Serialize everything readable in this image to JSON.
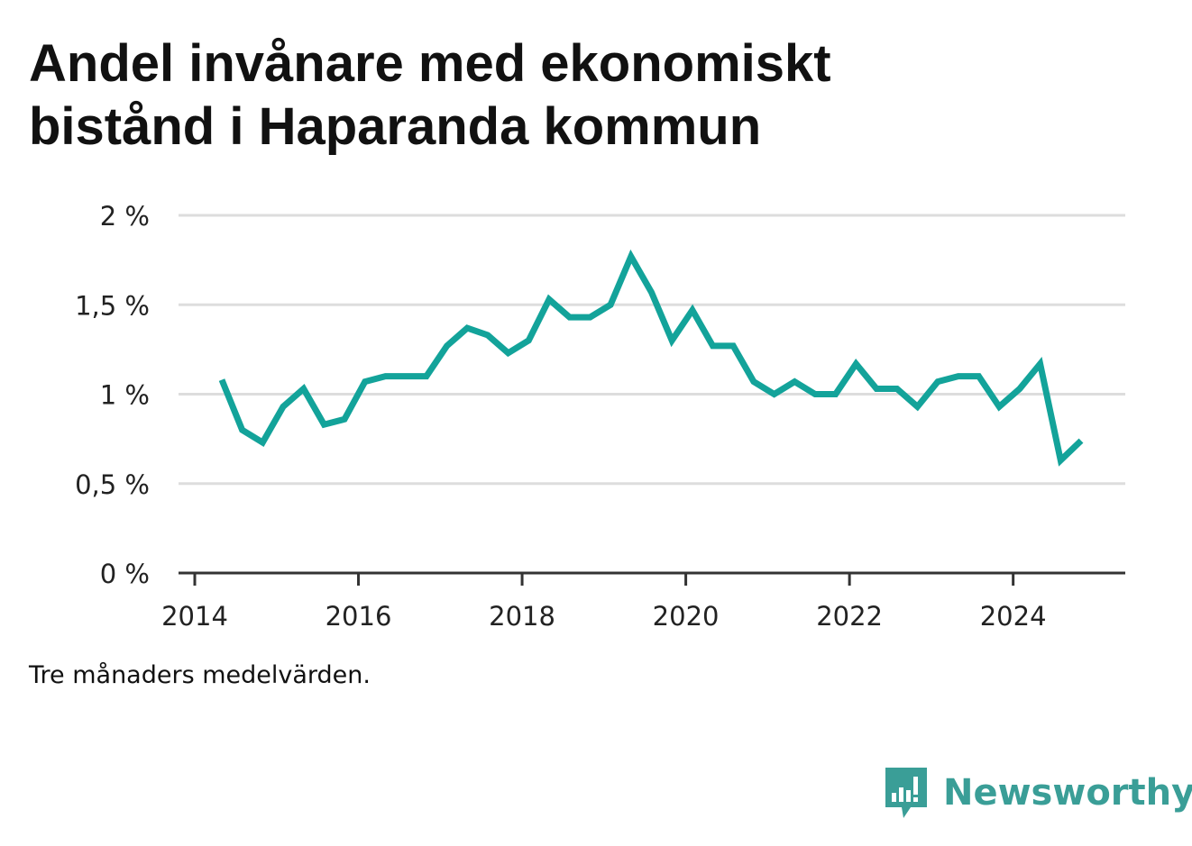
{
  "title": "Andel invånare med ekonomiskt bistånd i Haparanda kommun",
  "note": "Tre månaders medelvärden.",
  "brand": {
    "name": "Newsworthy",
    "logo_icon": "newsworthy-logo-icon"
  },
  "colors": {
    "line": "#13a39a",
    "grid": "#dddddd",
    "axis": "#333333",
    "brand": "#3a9e97"
  },
  "chart_data": {
    "type": "line",
    "title": "Andel invånare med ekonomiskt bistånd i Haparanda kommun",
    "xlabel": "",
    "ylabel": "",
    "ylim": [
      0,
      2
    ],
    "xlim": [
      2014,
      2025.4
    ],
    "y_ticks": [
      {
        "value": 0,
        "label": "0 %"
      },
      {
        "value": 0.5,
        "label": "0,5 %"
      },
      {
        "value": 1,
        "label": "1 %"
      },
      {
        "value": 1.5,
        "label": "1,5 %"
      },
      {
        "value": 2,
        "label": "2 %"
      }
    ],
    "x_ticks": [
      {
        "value": 2014,
        "label": "2014"
      },
      {
        "value": 2016,
        "label": "2016"
      },
      {
        "value": 2018,
        "label": "2018"
      },
      {
        "value": 2020,
        "label": "2020"
      },
      {
        "value": 2022,
        "label": "2022"
      },
      {
        "value": 2024,
        "label": "2024"
      }
    ],
    "grid": true,
    "series": [
      {
        "points": [
          [
            2014.33,
            1.08
          ],
          [
            2014.58,
            0.8
          ],
          [
            2014.83,
            0.73
          ],
          [
            2015.08,
            0.93
          ],
          [
            2015.33,
            1.03
          ],
          [
            2015.58,
            0.83
          ],
          [
            2015.83,
            0.86
          ],
          [
            2016.08,
            1.07
          ],
          [
            2016.33,
            1.1
          ],
          [
            2016.58,
            1.1
          ],
          [
            2016.83,
            1.1
          ],
          [
            2017.08,
            1.27
          ],
          [
            2017.33,
            1.37
          ],
          [
            2017.58,
            1.33
          ],
          [
            2017.83,
            1.23
          ],
          [
            2018.08,
            1.3
          ],
          [
            2018.33,
            1.53
          ],
          [
            2018.58,
            1.43
          ],
          [
            2018.83,
            1.43
          ],
          [
            2019.08,
            1.5
          ],
          [
            2019.33,
            1.77
          ],
          [
            2019.58,
            1.57
          ],
          [
            2019.83,
            1.3
          ],
          [
            2020.08,
            1.47
          ],
          [
            2020.33,
            1.27
          ],
          [
            2020.58,
            1.27
          ],
          [
            2020.83,
            1.07
          ],
          [
            2021.08,
            1.0
          ],
          [
            2021.33,
            1.07
          ],
          [
            2021.58,
            1.0
          ],
          [
            2021.83,
            1.0
          ],
          [
            2022.08,
            1.17
          ],
          [
            2022.33,
            1.03
          ],
          [
            2022.58,
            1.03
          ],
          [
            2022.83,
            0.93
          ],
          [
            2023.08,
            1.07
          ],
          [
            2023.33,
            1.1
          ],
          [
            2023.58,
            1.1
          ],
          [
            2023.83,
            0.93
          ],
          [
            2024.08,
            1.03
          ],
          [
            2024.33,
            1.17
          ],
          [
            2024.58,
            0.63
          ],
          [
            2024.83,
            0.74
          ]
        ]
      }
    ]
  }
}
